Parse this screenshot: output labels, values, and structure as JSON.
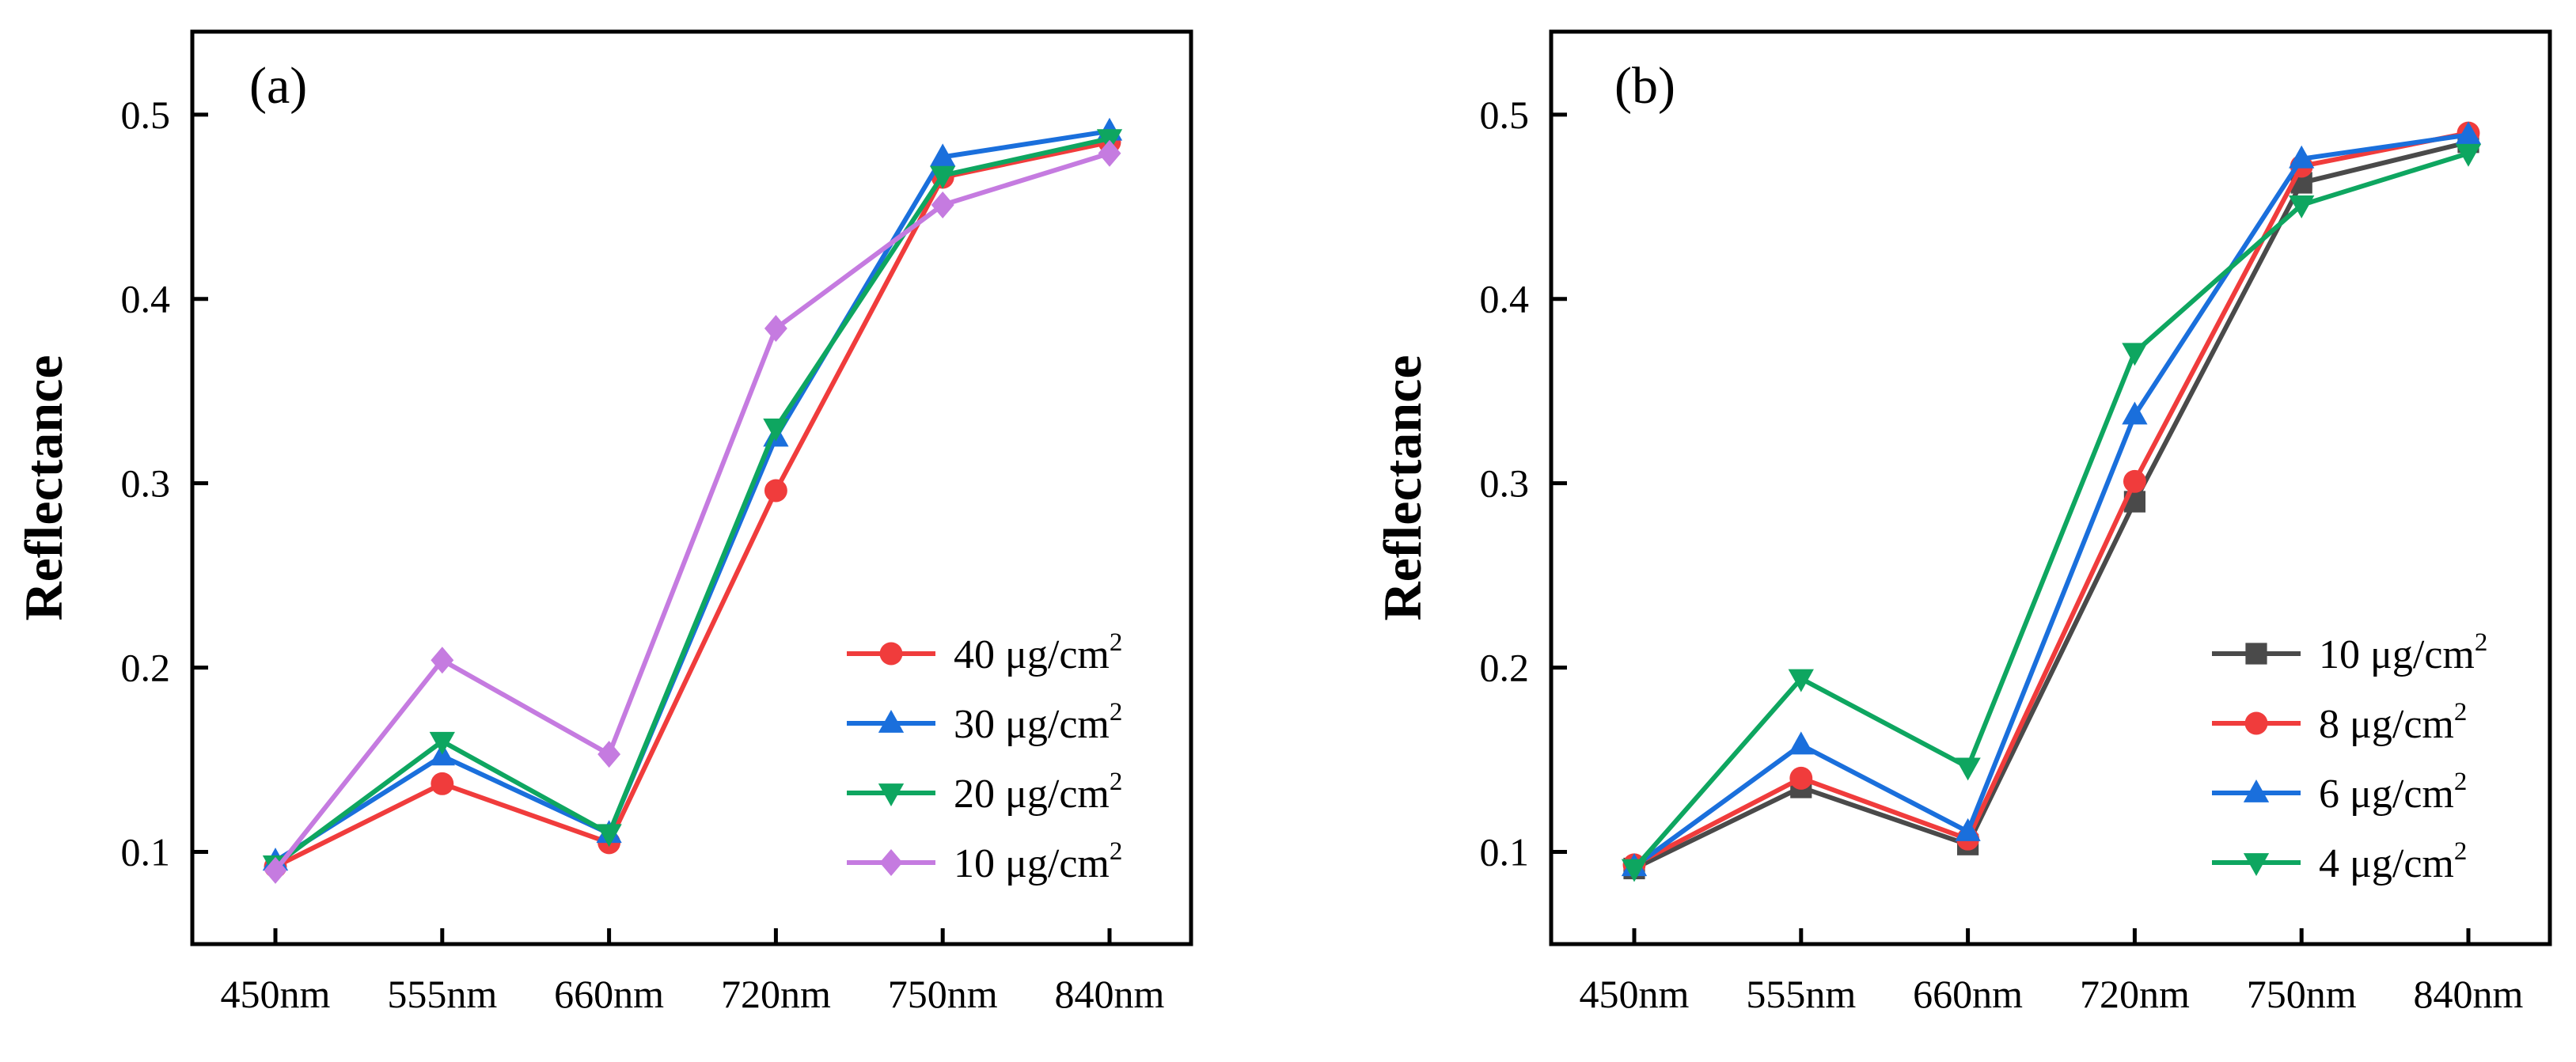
{
  "chart_data": [
    {
      "type": "line",
      "panel_label": "(a)",
      "ylabel": "Reflectance",
      "xlabel": "",
      "categories": [
        "450nm",
        "555nm",
        "660nm",
        "720nm",
        "750nm",
        "840nm"
      ],
      "ylim": [
        0.05,
        0.545
      ],
      "yticks": [
        0.1,
        0.2,
        0.3,
        0.4,
        0.5
      ],
      "ytick_labels": [
        "0.1",
        "0.2",
        "0.3",
        "0.4",
        "0.5"
      ],
      "legend_position": "bottom-right",
      "series": [
        {
          "name": "40 μg/cm2",
          "label_base": "40 μg/cm",
          "label_sup": "2",
          "color": "#f03c3c",
          "marker": "circle",
          "values": [
            0.092,
            0.137,
            0.105,
            0.296,
            0.466,
            0.485
          ]
        },
        {
          "name": "30 μg/cm2",
          "label_base": "30 μg/cm",
          "label_sup": "2",
          "color": "#1a6fdc",
          "marker": "triangle-up",
          "values": [
            0.095,
            0.152,
            0.11,
            0.325,
            0.477,
            0.491
          ]
        },
        {
          "name": "20 μg/cm2",
          "label_base": "20 μg/cm",
          "label_sup": "2",
          "color": "#0ea660",
          "marker": "triangle-down",
          "values": [
            0.093,
            0.16,
            0.11,
            0.33,
            0.467,
            0.487
          ]
        },
        {
          "name": "10 μg/cm2",
          "label_base": "10 μg/cm",
          "label_sup": "2",
          "color": "#c57be0",
          "marker": "diamond",
          "values": [
            0.09,
            0.204,
            0.153,
            0.384,
            0.451,
            0.479
          ]
        }
      ]
    },
    {
      "type": "line",
      "panel_label": "(b)",
      "ylabel": "Reflectance",
      "xlabel": "",
      "categories": [
        "450nm",
        "555nm",
        "660nm",
        "720nm",
        "750nm",
        "840nm"
      ],
      "ylim": [
        0.05,
        0.545
      ],
      "yticks": [
        0.1,
        0.2,
        0.3,
        0.4,
        0.5
      ],
      "ytick_labels": [
        "0.1",
        "0.2",
        "0.3",
        "0.4",
        "0.5"
      ],
      "legend_position": "bottom-right",
      "series": [
        {
          "name": "10 μg/cm2",
          "label_base": "10 μg/cm",
          "label_sup": "2",
          "color": "#4a4a4a",
          "marker": "square",
          "values": [
            0.091,
            0.135,
            0.104,
            0.29,
            0.463,
            0.485
          ]
        },
        {
          "name": "8 μg/cm2",
          "label_base": "8 μg/cm",
          "label_sup": "2",
          "color": "#f03c3c",
          "marker": "circle",
          "values": [
            0.093,
            0.14,
            0.107,
            0.301,
            0.472,
            0.49
          ]
        },
        {
          "name": "6 μg/cm2",
          "label_base": "6 μg/cm",
          "label_sup": "2",
          "color": "#1a6fdc",
          "marker": "triangle-up",
          "values": [
            0.092,
            0.158,
            0.111,
            0.337,
            0.476,
            0.489
          ]
        },
        {
          "name": "4 μg/cm2",
          "label_base": "4 μg/cm",
          "label_sup": "2",
          "color": "#0ea660",
          "marker": "triangle-down",
          "values": [
            0.091,
            0.194,
            0.146,
            0.371,
            0.451,
            0.479
          ]
        }
      ]
    }
  ]
}
